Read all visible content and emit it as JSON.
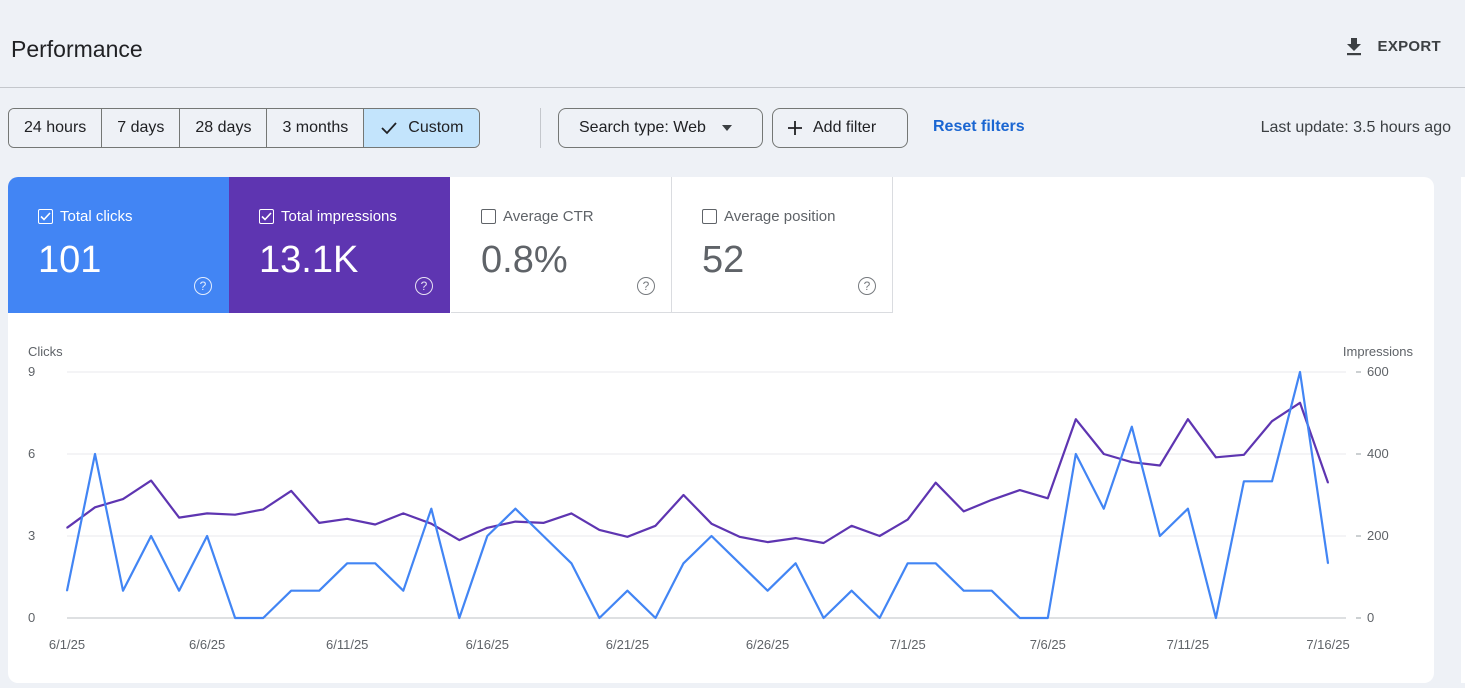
{
  "header": {
    "title": "Performance",
    "export_label": "EXPORT",
    "export_icon": "download-icon"
  },
  "filters": {
    "ranges": [
      {
        "label": "24 hours",
        "active": false
      },
      {
        "label": "7 days",
        "active": false
      },
      {
        "label": "28 days",
        "active": false
      },
      {
        "label": "3 months",
        "active": false
      },
      {
        "label": "Custom",
        "active": true
      }
    ],
    "search_type": "Search type: Web",
    "add_filter": "Add filter",
    "reset": "Reset filters",
    "last_update": "Last update: 3.5 hours ago"
  },
  "metrics": [
    {
      "label": "Total clicks",
      "value": "101",
      "checked": true,
      "color": "#4285f4"
    },
    {
      "label": "Total impressions",
      "value": "13.1K",
      "checked": true,
      "color": "#5e35b1"
    },
    {
      "label": "Average CTR",
      "value": "0.8%",
      "checked": false
    },
    {
      "label": "Average position",
      "value": "52",
      "checked": false
    }
  ],
  "help_glyph": "?",
  "chart_data": {
    "type": "line",
    "left_axis_label": "Clicks",
    "right_axis_label": "Impressions",
    "left_ticks": [
      "0",
      "3",
      "6",
      "9"
    ],
    "right_ticks": [
      "0",
      "200",
      "400",
      "600"
    ],
    "ylim_left": [
      0,
      9
    ],
    "ylim_right": [
      0,
      600
    ],
    "grid": true,
    "x": [
      "6/1/25",
      "6/2/25",
      "6/3/25",
      "6/4/25",
      "6/5/25",
      "6/6/25",
      "6/7/25",
      "6/8/25",
      "6/9/25",
      "6/10/25",
      "6/11/25",
      "6/12/25",
      "6/13/25",
      "6/14/25",
      "6/15/25",
      "6/16/25",
      "6/17/25",
      "6/18/25",
      "6/19/25",
      "6/20/25",
      "6/21/25",
      "6/22/25",
      "6/23/25",
      "6/24/25",
      "6/25/25",
      "6/26/25",
      "6/27/25",
      "6/28/25",
      "6/29/25",
      "6/30/25",
      "7/1/25",
      "7/2/25",
      "7/3/25",
      "7/4/25",
      "7/5/25",
      "7/6/25",
      "7/7/25",
      "7/8/25",
      "7/9/25",
      "7/10/25",
      "7/11/25",
      "7/12/25",
      "7/13/25",
      "7/14/25",
      "7/15/25",
      "7/16/25"
    ],
    "x_tick_labels": [
      "6/1/25",
      "6/6/25",
      "6/11/25",
      "6/16/25",
      "6/21/25",
      "6/26/25",
      "7/1/25",
      "7/6/25",
      "7/11/25",
      "7/16/25"
    ],
    "series": [
      {
        "name": "Clicks",
        "axis": "left",
        "color": "#4285f4",
        "values": [
          1,
          6,
          1,
          3,
          1,
          3,
          0,
          0,
          1,
          1,
          2,
          2,
          1,
          4,
          0,
          3,
          4,
          3,
          2,
          0,
          1,
          0,
          2,
          3,
          2,
          1,
          2,
          0,
          1,
          0,
          2,
          2,
          1,
          1,
          0,
          0,
          6,
          4,
          7,
          3,
          4,
          0,
          5,
          5,
          9,
          2
        ]
      },
      {
        "name": "Impressions",
        "axis": "right",
        "color": "#5e35b1",
        "values": [
          220,
          270,
          290,
          335,
          245,
          255,
          252,
          265,
          310,
          232,
          242,
          228,
          255,
          230,
          190,
          220,
          235,
          232,
          255,
          215,
          198,
          225,
          300,
          230,
          198,
          185,
          195,
          183,
          225,
          200,
          240,
          330,
          260,
          288,
          312,
          292,
          485,
          400,
          380,
          372,
          485,
          392,
          398,
          480,
          525,
          330
        ]
      }
    ]
  }
}
